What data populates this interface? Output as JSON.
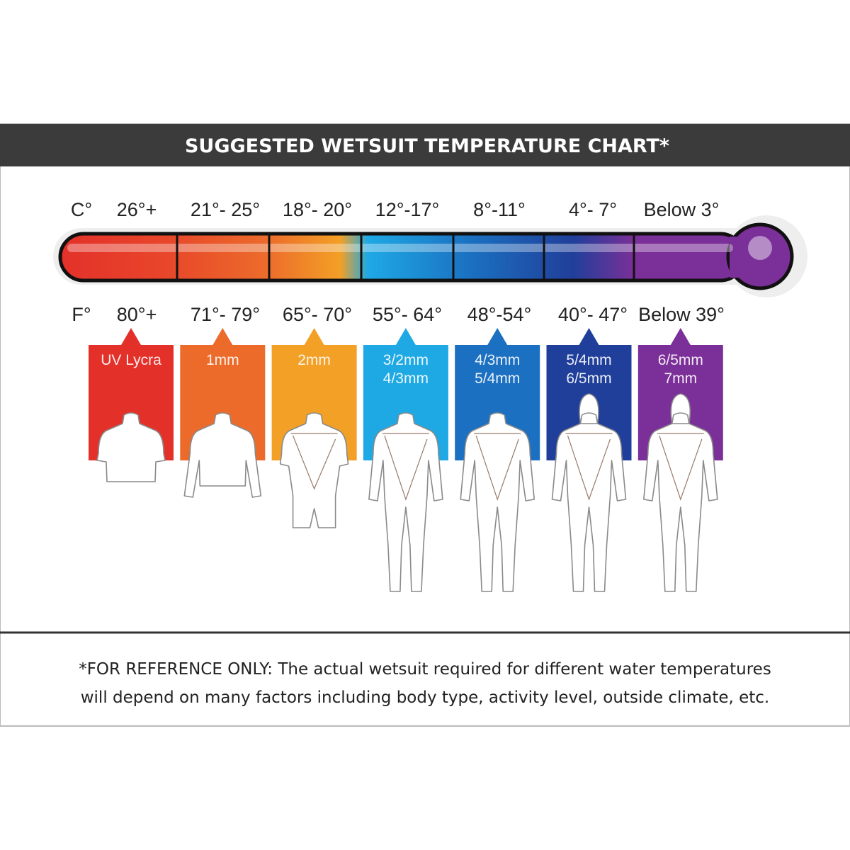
{
  "title": "SUGGESTED WETSUIT TEMPERATURE CHART*",
  "celsius": {
    "unit": "C°",
    "ranges": [
      "26°+",
      "21°- 25°",
      "18°- 20°",
      "12°-17°",
      "8°-11°",
      "4°- 7°",
      "Below 3°"
    ]
  },
  "fahrenheit": {
    "unit": "F°",
    "ranges": [
      "80°+",
      "71°- 79°",
      "65°- 70°",
      "55°- 64°",
      "48°-54°",
      "40°- 47°",
      "Below 39°"
    ]
  },
  "suits": [
    {
      "lines": [
        "UV Lycra"
      ],
      "color": "#e3312a",
      "type": "rash-vest-short-sleeve"
    },
    {
      "lines": [
        "1mm"
      ],
      "color": "#ec6b2b",
      "type": "long-sleeve-top"
    },
    {
      "lines": [
        "2mm"
      ],
      "color": "#f3a026",
      "type": "springsuit"
    },
    {
      "lines": [
        "3/2mm",
        "4/3mm"
      ],
      "color": "#1ea9e5",
      "type": "fullsuit"
    },
    {
      "lines": [
        "4/3mm",
        "5/4mm"
      ],
      "color": "#1b70c1",
      "type": "fullsuit"
    },
    {
      "lines": [
        "5/4mm",
        "6/5mm"
      ],
      "color": "#203f9a",
      "type": "hooded-fullsuit"
    },
    {
      "lines": [
        "6/5mm",
        "7mm"
      ],
      "color": "#7b2f98",
      "type": "hooded-fullsuit"
    }
  ],
  "thermometer_colors": [
    "#e3312a",
    "#ec6b2b",
    "#f3a026",
    "#1ea9e5",
    "#1b70c1",
    "#203f9a",
    "#7b2f98"
  ],
  "footnote": [
    "*FOR REFERENCE ONLY: The actual wetsuit required for different water temperatures",
    "will depend on many factors including body type, activity level, outside climate, etc."
  ]
}
